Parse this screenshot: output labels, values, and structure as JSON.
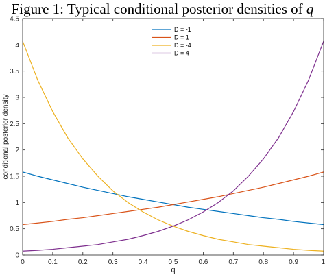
{
  "figure": {
    "title_prefix": "Figure 1: Typical conditional posterior densities of ",
    "title_var": "q"
  },
  "chart_data": {
    "type": "line",
    "title": "Figure 1: Typical conditional posterior densities of q",
    "xlabel": "q",
    "ylabel": "conditional posterior density",
    "xlim": [
      0,
      1
    ],
    "ylim": [
      0,
      4.5
    ],
    "xticks": [
      "0",
      "0.1",
      "0.2",
      "0.3",
      "0.4",
      "0.5",
      "0.6",
      "0.7",
      "0.8",
      "0.9",
      "1"
    ],
    "yticks": [
      "0",
      "0.5",
      "1",
      "1.5",
      "2",
      "2.5",
      "3",
      "3.5",
      "4",
      "4.5"
    ],
    "grid": false,
    "legend": "top-center",
    "x": [
      0,
      0.05,
      0.1,
      0.15,
      0.2,
      0.25,
      0.3,
      0.35,
      0.4,
      0.45,
      0.5,
      0.55,
      0.6,
      0.65,
      0.7,
      0.75,
      0.8,
      0.85,
      0.9,
      0.95,
      1
    ],
    "series": [
      {
        "name": "D = -1",
        "color": "#0072BD",
        "values": [
          1.58,
          1.5,
          1.43,
          1.36,
          1.29,
          1.23,
          1.17,
          1.11,
          1.06,
          1.01,
          0.96,
          0.91,
          0.87,
          0.83,
          0.79,
          0.75,
          0.71,
          0.68,
          0.64,
          0.61,
          0.58
        ]
      },
      {
        "name": "D = 1",
        "color": "#D95319",
        "values": [
          0.58,
          0.61,
          0.64,
          0.68,
          0.71,
          0.75,
          0.79,
          0.83,
          0.87,
          0.91,
          0.96,
          1.01,
          1.06,
          1.11,
          1.17,
          1.23,
          1.29,
          1.36,
          1.43,
          1.5,
          1.58
        ]
      },
      {
        "name": "D = -4",
        "color": "#EDB120",
        "values": [
          4.07,
          3.33,
          2.73,
          2.23,
          1.83,
          1.5,
          1.22,
          1.0,
          0.82,
          0.67,
          0.55,
          0.45,
          0.37,
          0.3,
          0.25,
          0.2,
          0.17,
          0.14,
          0.11,
          0.09,
          0.075
        ]
      },
      {
        "name": "D = 4",
        "color": "#7E2F8E",
        "values": [
          0.075,
          0.09,
          0.11,
          0.14,
          0.17,
          0.2,
          0.25,
          0.3,
          0.37,
          0.45,
          0.55,
          0.67,
          0.82,
          1.0,
          1.22,
          1.5,
          1.83,
          2.23,
          2.73,
          3.33,
          4.07
        ]
      }
    ]
  }
}
